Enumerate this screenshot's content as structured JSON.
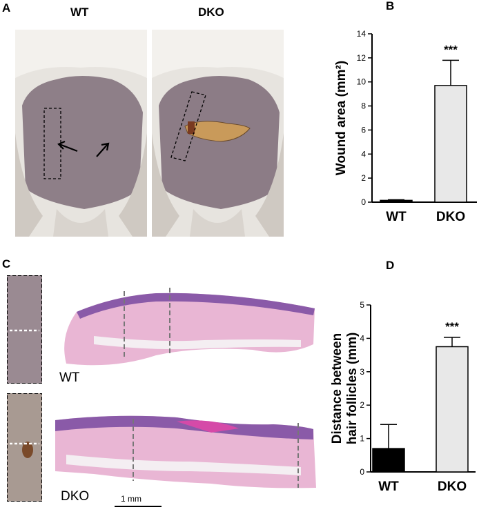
{
  "panels": {
    "A": {
      "letter": "A",
      "photo_labels": [
        "WT",
        "DKO"
      ]
    },
    "C": {
      "letter": "C",
      "histology_labels": [
        "WT",
        "DKO"
      ],
      "scale_bar_label": "1 mm"
    }
  },
  "colors": {
    "wt_bar": "#000000",
    "dko_bar": "#e8e8e8",
    "axis": "#000000",
    "mouse_skin": "#8f7f88",
    "fur": "#f0ede8",
    "wound": "#c99a5a",
    "he_stain_pink": "#e9b6d4",
    "he_stain_purple": "#8a5aa8"
  },
  "chart_data": [
    {
      "panel": "B",
      "type": "bar",
      "categories": [
        "WT",
        "DKO"
      ],
      "values": [
        0.15,
        9.7
      ],
      "error_upper": [
        0.2,
        11.8
      ],
      "ylabel": "Wound area (mm²)",
      "ylim": [
        0,
        14
      ],
      "yticks": [
        "0",
        "2",
        "4",
        "6",
        "8",
        "10",
        "12",
        "14"
      ],
      "significance": "***",
      "letter": "B"
    },
    {
      "panel": "D",
      "type": "bar",
      "categories": [
        "WT",
        "DKO"
      ],
      "values": [
        0.7,
        3.75
      ],
      "error_upper": [
        1.42,
        4.03
      ],
      "ylabel_lines": [
        "Distance between",
        "hair follicles (mm)"
      ],
      "ylim": [
        0,
        5
      ],
      "yticks": [
        "0",
        "1",
        "2",
        "3",
        "4",
        "5"
      ],
      "significance": "***",
      "letter": "D"
    }
  ]
}
